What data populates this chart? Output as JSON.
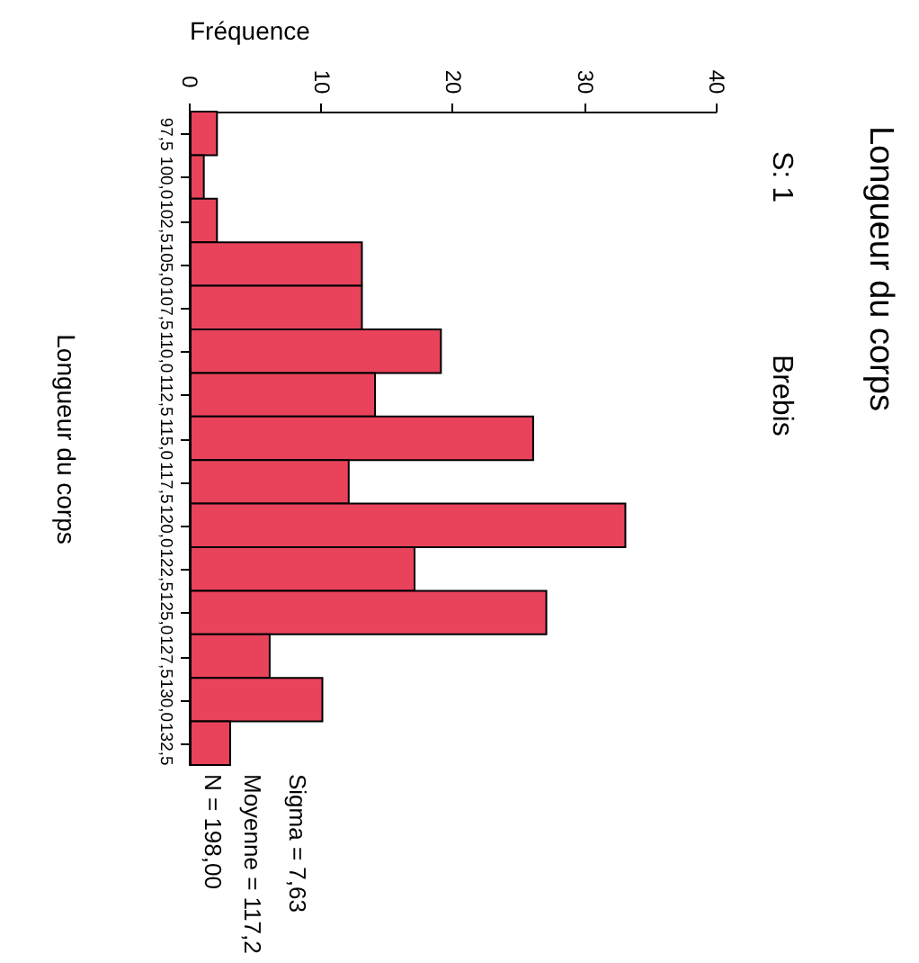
{
  "chart_data": {
    "type": "histogram",
    "orientation": "horizontal",
    "title": "Longueur du corps",
    "subtitle": "S: 1",
    "xlabel": "Fréquence",
    "ylabel": "Longueur du corps",
    "annotations": [
      "Brebis",
      "Sigma = 7,63",
      "Moyenne = 117,2",
      "N = 198,00"
    ],
    "bins": [
      96.25,
      98.75,
      101.25,
      103.75,
      106.25,
      108.75,
      111.25,
      113.75,
      116.25,
      118.75,
      121.25,
      123.75,
      126.25,
      128.75,
      131.25,
      133.75
    ],
    "values": [
      2,
      1,
      2,
      13,
      13,
      19,
      14,
      26,
      12,
      33,
      17,
      27,
      6,
      10,
      3
    ],
    "color": "#e9435c",
    "xlim": [
      0,
      40
    ],
    "xticks": [
      0,
      10,
      20,
      30,
      40
    ],
    "ylim": [
      133.75,
      96.25
    ],
    "yticks": [
      {
        "value": 97.5,
        "label": "97,5"
      },
      {
        "value": 100,
        "label": "100,0"
      },
      {
        "value": 102.5,
        "label": "102,5"
      },
      {
        "value": 105,
        "label": "105,0"
      },
      {
        "value": 107.5,
        "label": "107,5"
      },
      {
        "value": 110,
        "label": "110,0"
      },
      {
        "value": 112.5,
        "label": "112,5"
      },
      {
        "value": 115,
        "label": "115,0"
      },
      {
        "value": 117.5,
        "label": "117,5"
      },
      {
        "value": 120,
        "label": "120,0"
      },
      {
        "value": 122.5,
        "label": "122,5"
      },
      {
        "value": 125,
        "label": "125,0"
      },
      {
        "value": 127.5,
        "label": "127,5"
      },
      {
        "value": 130,
        "label": "130,0"
      },
      {
        "value": 132.5,
        "label": "132,5"
      }
    ],
    "grid": false
  }
}
